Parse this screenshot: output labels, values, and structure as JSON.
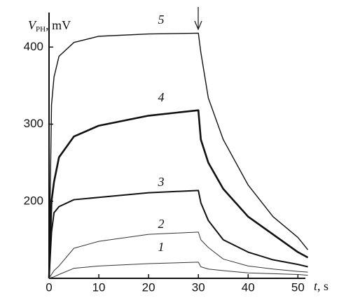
{
  "chart_data": {
    "type": "line",
    "y_label": {
      "var": "V",
      "sub": "PH",
      "unit": ", mV"
    },
    "x_label": {
      "var": "t",
      "unit": ", s"
    },
    "x": [
      0,
      0.5,
      1,
      2,
      5,
      10,
      20,
      30,
      30.5,
      32,
      35,
      40,
      45,
      50,
      52
    ],
    "series": [
      {
        "name": "5",
        "color": "#111111",
        "width": 1.4,
        "values": [
          100,
          325,
          361,
          388,
          406,
          414,
          417,
          418,
          393,
          334,
          280,
          221,
          180,
          153,
          137
        ]
      },
      {
        "name": "4",
        "color": "#111111",
        "width": 2.6,
        "values": [
          100,
          200,
          225,
          257,
          284,
          298,
          311,
          318,
          280,
          250,
          216,
          180,
          157,
          134,
          127
        ]
      },
      {
        "name": "3",
        "color": "#111111",
        "width": 2.0,
        "values": [
          100,
          160,
          185,
          193,
          202,
          205,
          211,
          214,
          198,
          175,
          150,
          134,
          124,
          118,
          115
        ]
      },
      {
        "name": "2",
        "color": "#333333",
        "width": 1.0,
        "values": [
          100,
          105,
          110,
          116,
          139,
          148,
          157,
          160,
          150,
          140,
          125,
          116,
          112,
          109,
          108
        ]
      },
      {
        "name": "1",
        "color": "#333333",
        "width": 1.0,
        "values": [
          100,
          101,
          102,
          105,
          113,
          116,
          119,
          121,
          115,
          112,
          110,
          107,
          106,
          105,
          104
        ]
      }
    ],
    "xlim": [
      0,
      51.5
    ],
    "xticks": [
      0,
      10,
      20,
      30,
      40,
      50
    ],
    "ylim": [
      100,
      442
    ],
    "yticks": [
      200,
      300,
      400
    ],
    "grid": false
  }
}
